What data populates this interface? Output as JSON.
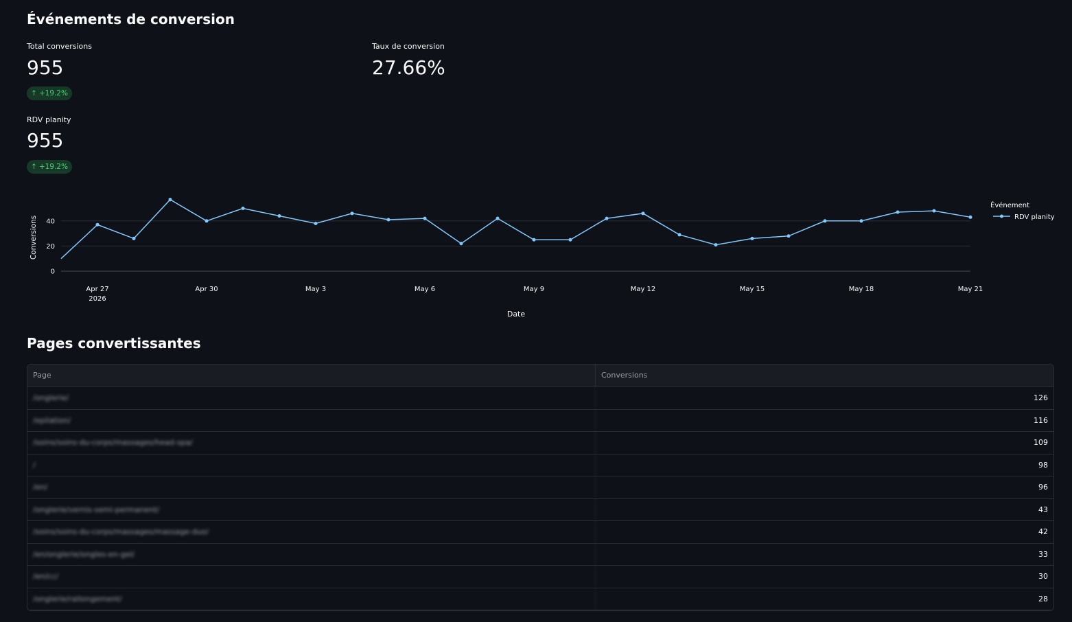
{
  "section1": {
    "title": "Événements de conversion"
  },
  "metrics": [
    {
      "label": "Total conversions",
      "value": "955",
      "delta": "+19.2%"
    },
    {
      "label": "Taux de conversion",
      "value": "27.66%"
    },
    {
      "label": "RDV planity",
      "value": "955",
      "delta": "+19.2%"
    }
  ],
  "chart_data": {
    "type": "line",
    "x": [
      "2026-04-26",
      "2026-04-27",
      "2026-04-28",
      "2026-04-29",
      "2026-04-30",
      "2026-05-01",
      "2026-05-02",
      "2026-05-03",
      "2026-05-04",
      "2026-05-05",
      "2026-05-06",
      "2026-05-07",
      "2026-05-08",
      "2026-05-09",
      "2026-05-10",
      "2026-05-11",
      "2026-05-12",
      "2026-05-13",
      "2026-05-14",
      "2026-05-15",
      "2026-05-16",
      "2026-05-17",
      "2026-05-18",
      "2026-05-19",
      "2026-05-20",
      "2026-05-21"
    ],
    "series": [
      {
        "name": "RDV planity",
        "values": [
          10,
          37,
          26,
          57,
          40,
          50,
          44,
          38,
          46,
          41,
          42,
          22,
          42,
          25,
          25,
          42,
          46,
          29,
          21,
          26,
          28,
          40,
          40,
          47,
          48,
          43
        ]
      }
    ],
    "xlabel": "Date",
    "ylabel": "Conversions",
    "yticks": [
      "0",
      "20",
      "40"
    ],
    "xticks": [
      {
        "label": "Apr 27",
        "sub": "2026",
        "date": "2026-04-27"
      },
      {
        "label": "Apr 30",
        "date": "2026-04-30"
      },
      {
        "label": "May 3",
        "date": "2026-05-03"
      },
      {
        "label": "May 6",
        "date": "2026-05-06"
      },
      {
        "label": "May 9",
        "date": "2026-05-09"
      },
      {
        "label": "May 12",
        "date": "2026-05-12"
      },
      {
        "label": "May 15",
        "date": "2026-05-15"
      },
      {
        "label": "May 18",
        "date": "2026-05-18"
      },
      {
        "label": "May 21",
        "date": "2026-05-21"
      }
    ],
    "legend_title": "Événement",
    "legend_position": "right",
    "ylim": [
      0,
      57
    ],
    "color": "#83c9ff"
  },
  "section2": {
    "title": "Pages convertissantes"
  },
  "table": {
    "columns": [
      "Page",
      "Conversions"
    ],
    "rows": [
      {
        "page": "/onglerie/",
        "conversions": "126"
      },
      {
        "page": "/epilation/",
        "conversions": "116"
      },
      {
        "page": "/soins/soins-du-corps/massages/head-spa/",
        "conversions": "109"
      },
      {
        "page": "/",
        "conversions": "98"
      },
      {
        "page": "/en/",
        "conversions": "96"
      },
      {
        "page": "/onglerie/vernis-semi-permanent/",
        "conversions": "43"
      },
      {
        "page": "/soins/soins-du-corps/massages/massage-duo/",
        "conversions": "42"
      },
      {
        "page": "/en/onglerie/ongles-en-gel/",
        "conversions": "33"
      },
      {
        "page": "/en/cc/",
        "conversions": "30"
      },
      {
        "page": "/onglerie/rallongement/",
        "conversions": "28"
      }
    ]
  }
}
